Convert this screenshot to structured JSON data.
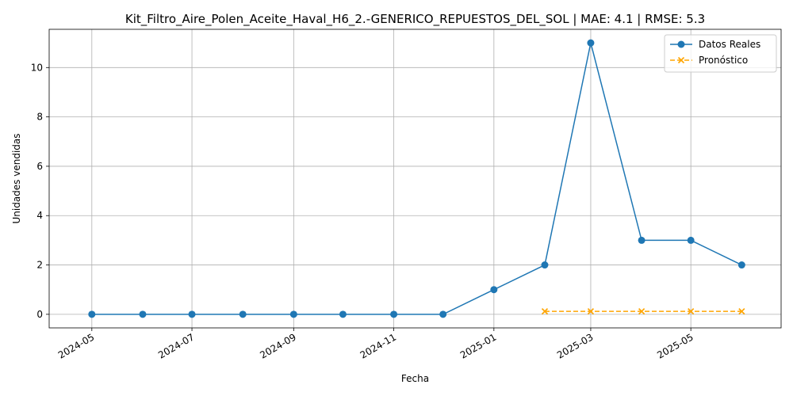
{
  "chart_data": {
    "type": "line",
    "title": "Kit_Filtro_Aire_Polen_Aceite_Haval_H6_2.-GENERICO_REPUESTOS_DEL_SOL | MAE: 4.1 | RMSE: 5.3",
    "xlabel": "Fecha",
    "ylabel": "Unidades vendidas",
    "x_tick_labels": [
      "2024-05",
      "2024-07",
      "2024-09",
      "2024-11",
      "2025-01",
      "2025-03",
      "2025-05"
    ],
    "x_tick_dates": [
      "2024-05-01",
      "2024-07-01",
      "2024-09-01",
      "2024-11-01",
      "2025-01-01",
      "2025-03-01",
      "2025-05-01"
    ],
    "y_ticks": [
      0,
      2,
      4,
      6,
      8,
      10
    ],
    "xlim": [
      "2024-04-05",
      "2025-06-25"
    ],
    "ylim": [
      -0.55,
      11.55
    ],
    "grid": true,
    "legend_position": "top-right",
    "series": [
      {
        "name": "Datos Reales",
        "color": "#1f77b4",
        "style": "solid",
        "marker": "circle",
        "points": [
          {
            "x": "2024-05-01",
            "y": 0
          },
          {
            "x": "2024-06-01",
            "y": 0
          },
          {
            "x": "2024-07-01",
            "y": 0
          },
          {
            "x": "2024-08-01",
            "y": 0
          },
          {
            "x": "2024-09-01",
            "y": 0
          },
          {
            "x": "2024-10-01",
            "y": 0
          },
          {
            "x": "2024-11-01",
            "y": 0
          },
          {
            "x": "2024-12-01",
            "y": 0
          },
          {
            "x": "2025-01-01",
            "y": 1
          },
          {
            "x": "2025-02-01",
            "y": 2
          },
          {
            "x": "2025-03-01",
            "y": 11
          },
          {
            "x": "2025-04-01",
            "y": 3
          },
          {
            "x": "2025-05-01",
            "y": 3
          },
          {
            "x": "2025-06-01",
            "y": 2
          }
        ]
      },
      {
        "name": "Pronóstico",
        "color": "#ffa500",
        "style": "dashed",
        "marker": "x",
        "points": [
          {
            "x": "2025-02-01",
            "y": 0.12
          },
          {
            "x": "2025-03-01",
            "y": 0.12
          },
          {
            "x": "2025-04-01",
            "y": 0.12
          },
          {
            "x": "2025-05-01",
            "y": 0.12
          },
          {
            "x": "2025-06-01",
            "y": 0.12
          }
        ]
      }
    ]
  }
}
